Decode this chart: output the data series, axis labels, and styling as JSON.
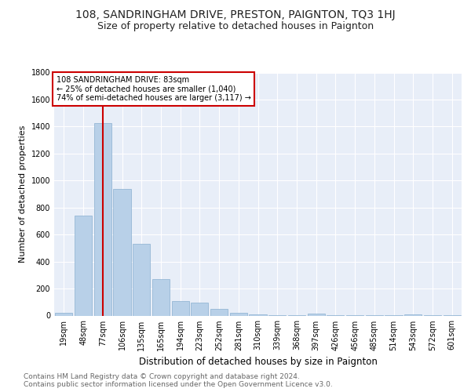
{
  "title": "108, SANDRINGHAM DRIVE, PRESTON, PAIGNTON, TQ3 1HJ",
  "subtitle": "Size of property relative to detached houses in Paignton",
  "xlabel": "Distribution of detached houses by size in Paignton",
  "ylabel": "Number of detached properties",
  "categories": [
    "19sqm",
    "48sqm",
    "77sqm",
    "106sqm",
    "135sqm",
    "165sqm",
    "194sqm",
    "223sqm",
    "252sqm",
    "281sqm",
    "310sqm",
    "339sqm",
    "368sqm",
    "397sqm",
    "426sqm",
    "456sqm",
    "485sqm",
    "514sqm",
    "543sqm",
    "572sqm",
    "601sqm"
  ],
  "values": [
    18,
    740,
    1425,
    940,
    530,
    270,
    110,
    96,
    48,
    22,
    10,
    5,
    3,
    15,
    3,
    3,
    3,
    3,
    10,
    3,
    3
  ],
  "bar_color": "#b8d0e8",
  "bar_edgecolor": "#8ab0d0",
  "redline_index": 2,
  "annotation_lines": [
    "108 SANDRINGHAM DRIVE: 83sqm",
    "← 25% of detached houses are smaller (1,040)",
    "74% of semi-detached houses are larger (3,117) →"
  ],
  "annotation_box_facecolor": "#ffffff",
  "annotation_box_edgecolor": "#cc0000",
  "redline_color": "#cc0000",
  "ylim": [
    0,
    1800
  ],
  "yticks": [
    0,
    200,
    400,
    600,
    800,
    1000,
    1200,
    1400,
    1600,
    1800
  ],
  "footer": "Contains HM Land Registry data © Crown copyright and database right 2024.\nContains public sector information licensed under the Open Government Licence v3.0.",
  "title_fontsize": 10,
  "subtitle_fontsize": 9,
  "xlabel_fontsize": 8.5,
  "ylabel_fontsize": 8,
  "tick_fontsize": 7,
  "annot_fontsize": 7,
  "footer_fontsize": 6.5,
  "fig_background_color": "#ffffff",
  "plot_background_color": "#e8eef8"
}
